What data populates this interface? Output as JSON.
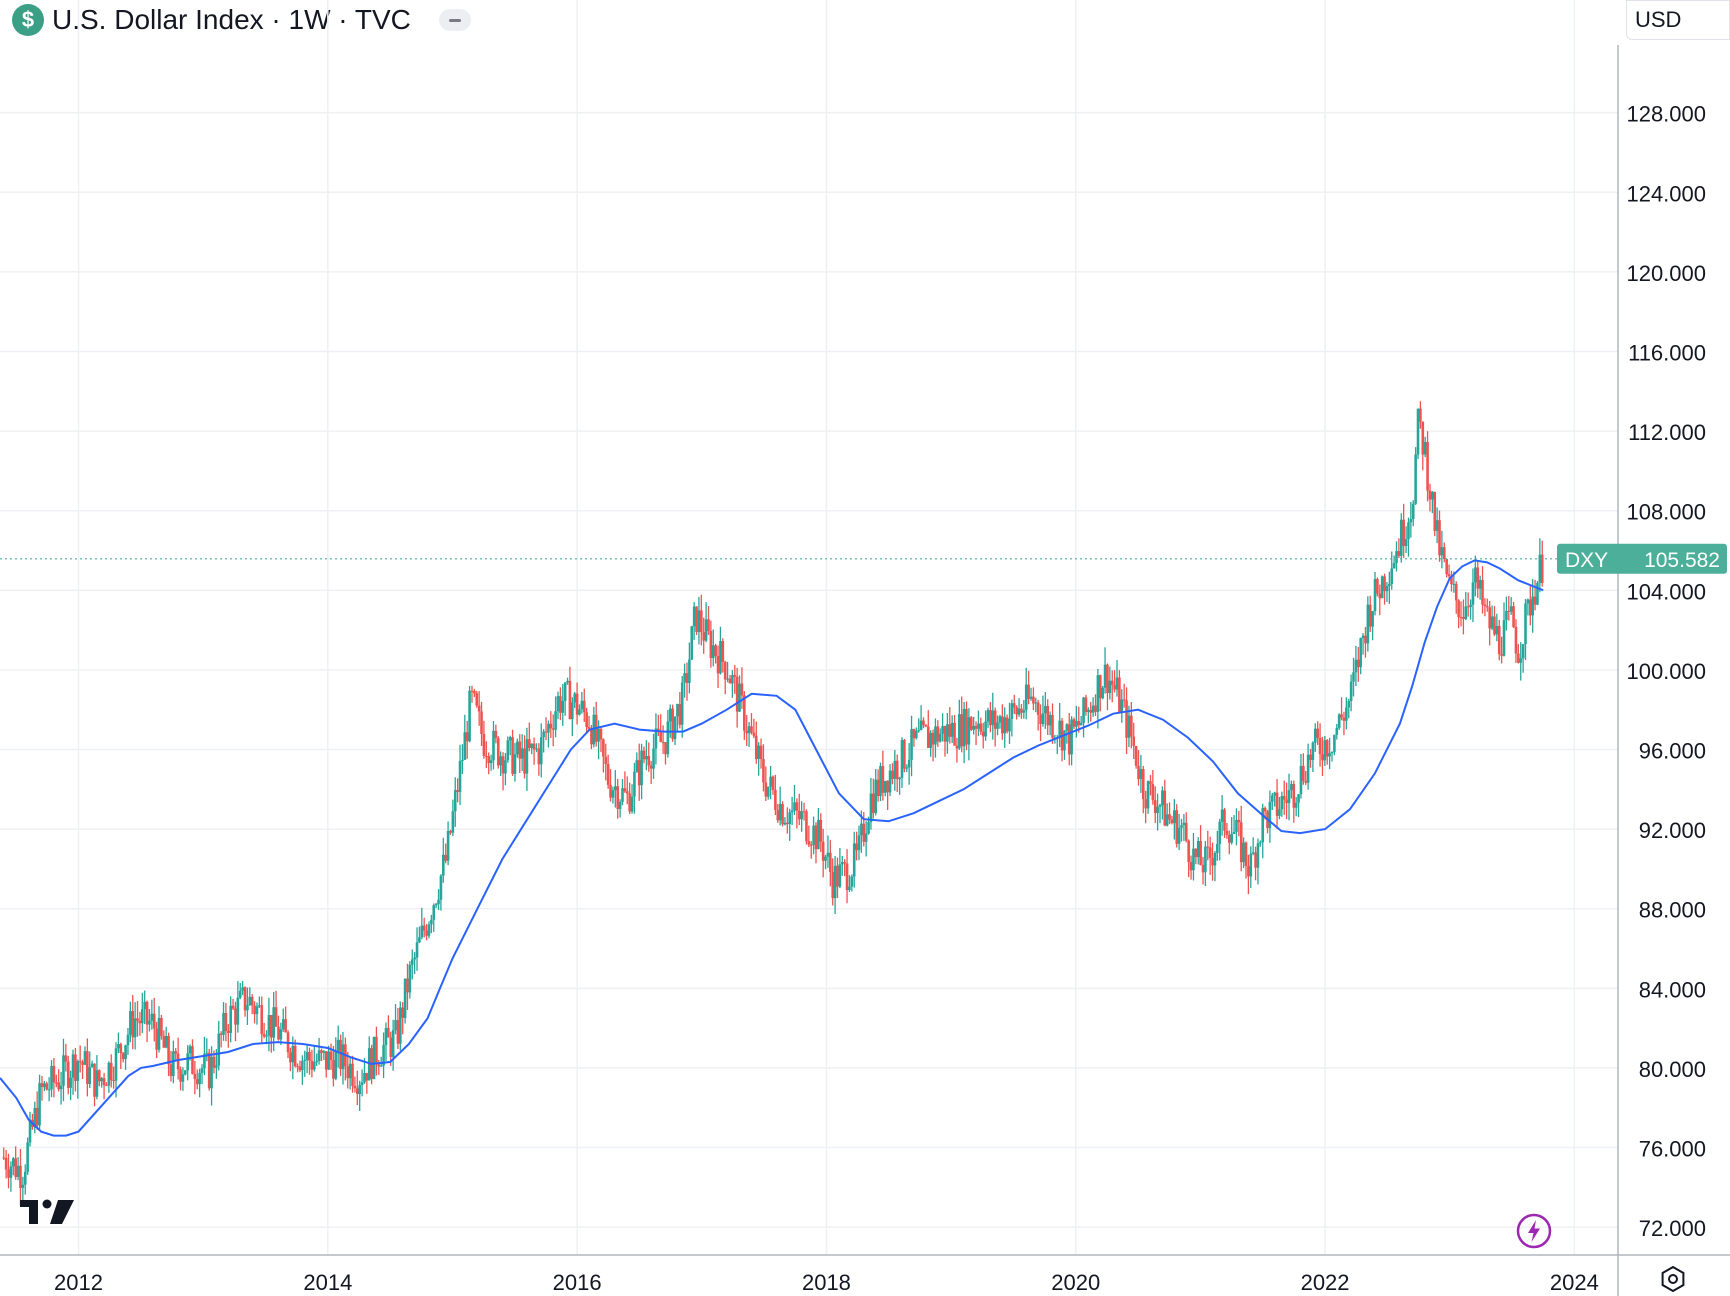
{
  "header": {
    "badge": "$",
    "title": "U.S. Dollar Index · 1W · TVC"
  },
  "currency": "USD",
  "price_label": {
    "symbol": "DXY",
    "value": "105.582"
  },
  "icons": {
    "badge": "dollar-icon",
    "collapse": "collapse-icon",
    "logo": "tradingview-logo",
    "bolt": "lightning-icon",
    "settings": "settings-icon"
  },
  "colors": {
    "up": "#26a69a",
    "down": "#ef5350",
    "ma": "#2962ff",
    "price_label": "#4caf99",
    "bolt": "#9c27b0"
  },
  "chart_data": {
    "type": "candlestick",
    "ylim": [
      70.6,
      131.4
    ],
    "y_ticks": [
      "72.000",
      "76.000",
      "80.000",
      "84.000",
      "88.000",
      "92.000",
      "96.000",
      "100.000",
      "104.000",
      "108.000",
      "112.000",
      "116.000",
      "120.000",
      "124.000",
      "128.000"
    ],
    "x_ticks": [
      "2012",
      "2014",
      "2016",
      "2018",
      "2020",
      "2022",
      "2024"
    ],
    "x_tick_years": [
      2012,
      2014,
      2016,
      2018,
      2020,
      2022,
      2024
    ],
    "xlim": [
      2011.37,
      2024.35
    ],
    "last_price": 105.582,
    "series": [
      {
        "name": "DXY",
        "kind": "close",
        "x": [
          2011.4,
          2011.55,
          2011.7,
          2011.85,
          2012.0,
          2012.15,
          2012.3,
          2012.45,
          2012.6,
          2012.75,
          2012.9,
          2013.05,
          2013.2,
          2013.35,
          2013.5,
          2013.65,
          2013.8,
          2013.95,
          2014.1,
          2014.25,
          2014.4,
          2014.55,
          2014.65,
          2014.75,
          2014.85,
          2014.95,
          2015.05,
          2015.15,
          2015.25,
          2015.4,
          2015.55,
          2015.7,
          2015.85,
          2015.95,
          2016.1,
          2016.25,
          2016.4,
          2016.55,
          2016.7,
          2016.85,
          2016.95,
          2017.05,
          2017.2,
          2017.35,
          2017.5,
          2017.65,
          2017.8,
          2017.95,
          2018.05,
          2018.15,
          2018.25,
          2018.35,
          2018.45,
          2018.6,
          2018.75,
          2018.9,
          2019.05,
          2019.2,
          2019.35,
          2019.5,
          2019.65,
          2019.8,
          2019.95,
          2020.1,
          2020.2,
          2020.25,
          2020.35,
          2020.45,
          2020.55,
          2020.65,
          2020.75,
          2020.85,
          2020.95,
          2021.05,
          2021.2,
          2021.3,
          2021.4,
          2021.5,
          2021.6,
          2021.75,
          2021.9,
          2022.05,
          2022.2,
          2022.35,
          2022.5,
          2022.6,
          2022.7,
          2022.75,
          2022.8,
          2022.9,
          2023.0,
          2023.1,
          2023.2,
          2023.3,
          2023.4,
          2023.5,
          2023.55,
          2023.65,
          2023.75
        ],
        "values": [
          75.5,
          74.8,
          78.8,
          79.5,
          80.5,
          79.2,
          80.5,
          82.5,
          82.2,
          80,
          80.3,
          79.8,
          82.5,
          83.5,
          82.5,
          81.5,
          80.5,
          80.3,
          80.5,
          79.6,
          80.8,
          81.5,
          84.5,
          86.5,
          88.5,
          90.5,
          94.5,
          98.5,
          96.5,
          95.8,
          95.5,
          96,
          98.5,
          98.5,
          97.5,
          94.5,
          93.5,
          95.8,
          96.5,
          98.5,
          102.8,
          101.5,
          100.2,
          97.5,
          94.5,
          93,
          92.5,
          91.5,
          89.5,
          89.8,
          90.5,
          93.5,
          94.5,
          95.5,
          96.5,
          96.8,
          97,
          97.5,
          97.3,
          97.8,
          98.5,
          97.5,
          96.5,
          98,
          99.5,
          99.8,
          98.5,
          96.5,
          94,
          93.5,
          92.5,
          92,
          90.5,
          90.2,
          92.5,
          91.5,
          90,
          92.5,
          93,
          94,
          96,
          96.5,
          98.5,
          103,
          105,
          106.5,
          108.5,
          112.5,
          111,
          106.5,
          104,
          103,
          104.5,
          102.5,
          101.5,
          102.5,
          101,
          103.5,
          105.5
        ]
      },
      {
        "name": "MA",
        "kind": "moving-average",
        "x": [
          2011.37,
          2011.5,
          2011.6,
          2011.7,
          2011.8,
          2011.9,
          2012.0,
          2012.2,
          2012.4,
          2012.5,
          2012.6,
          2012.8,
          2013.0,
          2013.2,
          2013.4,
          2013.6,
          2013.8,
          2013.9,
          2014.0,
          2014.2,
          2014.35,
          2014.5,
          2014.65,
          2014.8,
          2014.9,
          2015.0,
          2015.2,
          2015.4,
          2015.6,
          2015.8,
          2015.95,
          2016.1,
          2016.3,
          2016.5,
          2016.7,
          2016.85,
          2017.0,
          2017.2,
          2017.4,
          2017.6,
          2017.75,
          2017.9,
          2018.1,
          2018.3,
          2018.5,
          2018.7,
          2018.9,
          2019.1,
          2019.3,
          2019.5,
          2019.7,
          2019.9,
          2020.1,
          2020.3,
          2020.5,
          2020.7,
          2020.9,
          2021.1,
          2021.3,
          2021.5,
          2021.65,
          2021.8,
          2022.0,
          2022.2,
          2022.4,
          2022.6,
          2022.7,
          2022.8,
          2022.9,
          2023.0,
          2023.1,
          2023.2,
          2023.3,
          2023.4,
          2023.55,
          2023.75
        ],
        "values": [
          79.5,
          78.5,
          77.4,
          76.8,
          76.6,
          76.6,
          76.8,
          78.2,
          79.6,
          80,
          80.1,
          80.4,
          80.6,
          80.8,
          81.2,
          81.3,
          81.2,
          81.1,
          81.0,
          80.5,
          80.2,
          80.3,
          81.2,
          82.5,
          84,
          85.5,
          88,
          90.5,
          92.5,
          94.5,
          96,
          97,
          97.3,
          97,
          96.9,
          96.9,
          97.3,
          98.0,
          98.8,
          98.7,
          98,
          96.2,
          93.8,
          92.5,
          92.4,
          92.8,
          93.4,
          94,
          94.8,
          95.6,
          96.2,
          96.7,
          97.2,
          97.8,
          98.0,
          97.5,
          96.6,
          95.4,
          93.8,
          92.7,
          91.9,
          91.8,
          92.0,
          93.0,
          94.8,
          97.3,
          99.2,
          101.4,
          103.2,
          104.6,
          105.2,
          105.5,
          105.4,
          105.1,
          104.5,
          104.0
        ]
      }
    ]
  }
}
